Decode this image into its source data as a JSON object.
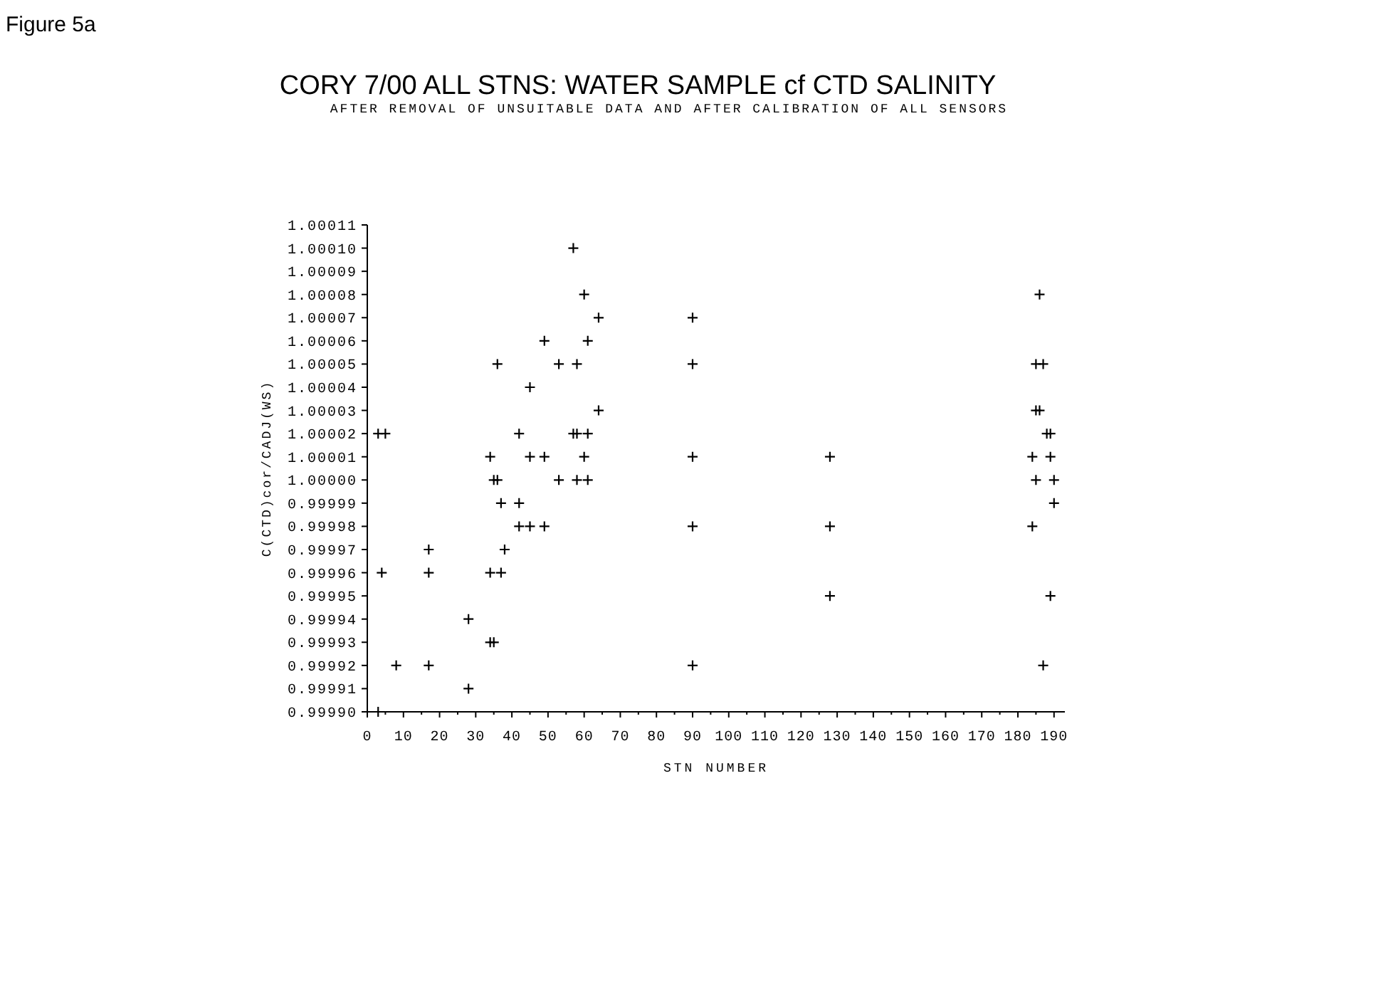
{
  "chart_data": {
    "type": "scatter",
    "title": "CORY 7/00  ALL STNS:   WATER SAMPLE cf CTD SALINITY",
    "subtitle": "AFTER REMOVAL OF UNSUITABLE DATA AND AFTER CALIBRATION OF ALL SENSORS",
    "xlabel": "STN NUMBER",
    "ylabel": "C(CTD)cor/CADJ(WS)",
    "annotations": [
      "Figure 5a"
    ],
    "marker": "cross",
    "grid": false,
    "xlim": [
      0,
      193
    ],
    "xticks": [
      0,
      {
        "value": 5,
        "label": null
      },
      10,
      {
        "value": 15,
        "label": null
      },
      20,
      {
        "value": 25,
        "label": null
      },
      30,
      {
        "value": 35,
        "label": null
      },
      40,
      {
        "value": 45,
        "label": null
      },
      50,
      {
        "value": 55,
        "label": null
      },
      60,
      {
        "value": 65,
        "label": null
      },
      70,
      {
        "value": 75,
        "label": null
      },
      80,
      {
        "value": 85,
        "label": null
      },
      90,
      {
        "value": 95,
        "label": null
      },
      100,
      {
        "value": 105,
        "label": null
      },
      110,
      {
        "value": 115,
        "label": null
      },
      120,
      {
        "value": 125,
        "label": null
      },
      130,
      {
        "value": 135,
        "label": null
      },
      140,
      {
        "value": 145,
        "label": null
      },
      150,
      {
        "value": 155,
        "label": null
      },
      160,
      {
        "value": 165,
        "label": null
      },
      170,
      {
        "value": 175,
        "label": null
      },
      180,
      {
        "value": 185,
        "label": null
      },
      190
    ],
    "ylim": [
      0.9999,
      1.00011
    ],
    "yticks": [
      {
        "value": 0.9999,
        "label": "0.99990"
      },
      0.99991,
      0.99992,
      0.99993,
      0.99994,
      0.99995,
      0.99996,
      0.99997,
      0.99998,
      0.99999,
      {
        "value": 1,
        "label": "1.00000"
      },
      1.00001,
      1.00002,
      1.00003,
      1.00004,
      1.00005,
      1.00006,
      1.00007,
      1.00008,
      1.00009,
      {
        "value": 1.0001,
        "label": "1.00010"
      },
      1.00011
    ],
    "series": [
      {
        "color": "#000000",
        "x": [
          3,
          5,
          4,
          3,
          8,
          17,
          17,
          17,
          28,
          28,
          34,
          35,
          34,
          37,
          34,
          35,
          36,
          36,
          37,
          42,
          38,
          42,
          45,
          49,
          42,
          45,
          49,
          45,
          49,
          53,
          58,
          53,
          58,
          61,
          57,
          60,
          64,
          61,
          64,
          57,
          58,
          61,
          60,
          90,
          90,
          90,
          90,
          90,
          128,
          128,
          128,
          186,
          185,
          187,
          185,
          186,
          188,
          189,
          184,
          189,
          185,
          190,
          190,
          184,
          189,
          187
        ],
        "values": [
          1.00002,
          1.00002,
          0.99996,
          0.9999,
          0.99992,
          0.99997,
          0.99996,
          0.99992,
          0.99994,
          0.99991,
          0.99993,
          0.99993,
          0.99996,
          0.99996,
          1.00001,
          1,
          1,
          1.00005,
          0.99999,
          0.99999,
          0.99997,
          0.99998,
          0.99998,
          0.99998,
          1.00002,
          1.00001,
          1.00001,
          1.00004,
          1.00006,
          1.00005,
          1.00005,
          1,
          1,
          1,
          1.0001,
          1.00008,
          1.00007,
          1.00006,
          1.00003,
          1.00002,
          1.00002,
          1.00002,
          1.00001,
          1.00007,
          1.00005,
          1.00001,
          0.99998,
          0.99992,
          1.00001,
          0.99998,
          0.99995,
          1.00008,
          1.00005,
          1.00005,
          1.00003,
          1.00003,
          1.00002,
          1.00002,
          1.00001,
          1.00001,
          1,
          1,
          0.99999,
          0.99998,
          0.99995,
          0.99992
        ]
      }
    ]
  }
}
